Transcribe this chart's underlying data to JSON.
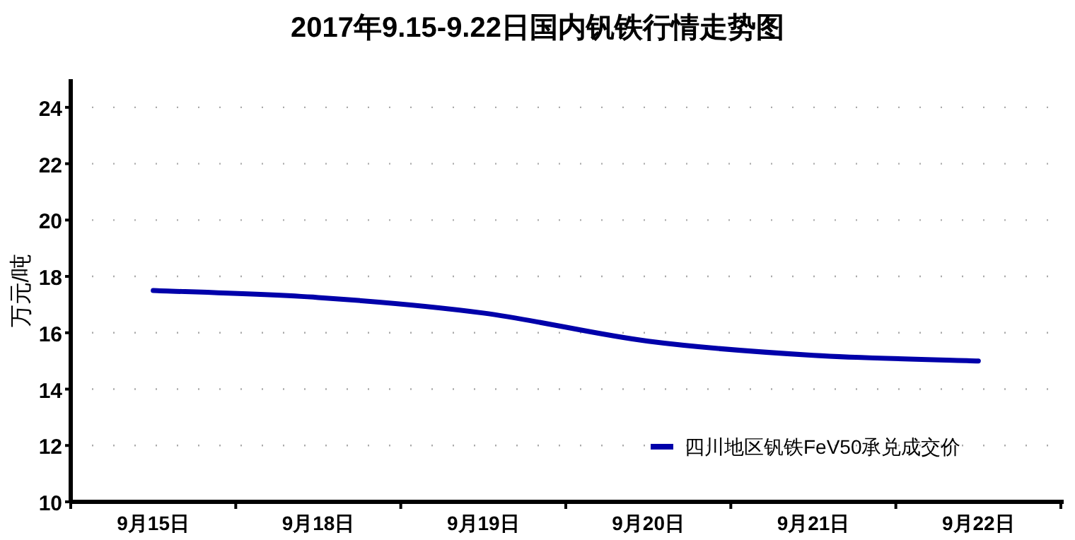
{
  "chart_data": {
    "type": "line",
    "title": "2017年9.15-9.22日国内钒铁行情走势图",
    "ylabel": "万元/吨",
    "categories": [
      "9月15日",
      "9月18日",
      "9月19日",
      "9月20日",
      "9月21日",
      "9月22日"
    ],
    "series": [
      {
        "name": "四川地区钒铁FeV50承兑成交价",
        "color": "#0000aa",
        "values": [
          17.5,
          17.25,
          16.7,
          15.7,
          15.2,
          15.0
        ]
      }
    ],
    "ylim": [
      10,
      25
    ],
    "yticks": [
      10,
      12,
      14,
      16,
      18,
      20,
      22,
      24
    ],
    "grid": "y",
    "legend": "bottom right"
  }
}
